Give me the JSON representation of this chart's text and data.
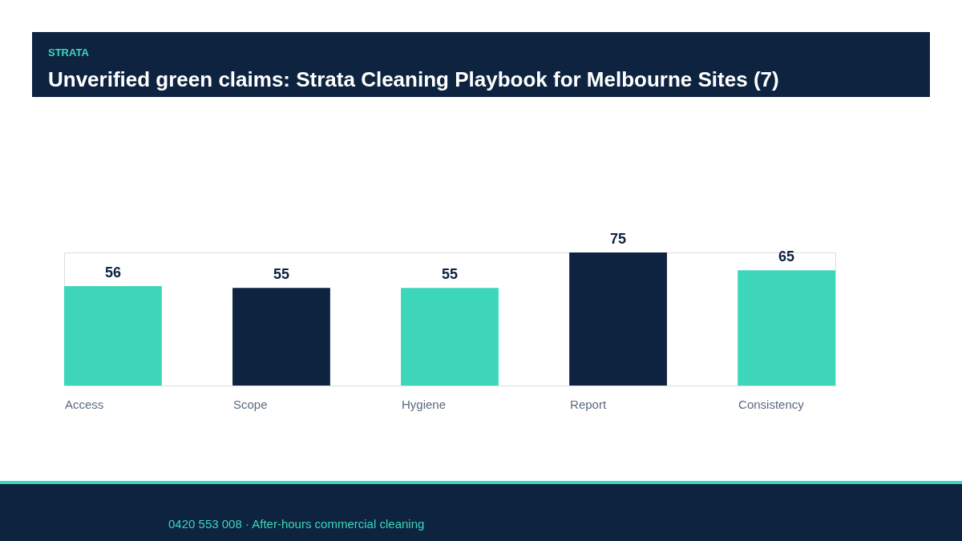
{
  "chart_data": {
    "type": "bar",
    "subtitle": "STRATA",
    "title": "Unverified green claims: Strata Cleaning Playbook for Melbourne Sites (7)",
    "categories": [
      "Access",
      "Scope",
      "Hygiene",
      "Report",
      "Consistency"
    ],
    "values": [
      56,
      55,
      55,
      75,
      65
    ],
    "colors": [
      "#3dd6bb",
      "#0d2340",
      "#3dd6bb",
      "#0d2340",
      "#3dd6bb"
    ],
    "data_labels": true,
    "grid": false,
    "legend": false,
    "annotations": [
      "0420 553 008  ·  After-hours commercial cleaning"
    ]
  }
}
